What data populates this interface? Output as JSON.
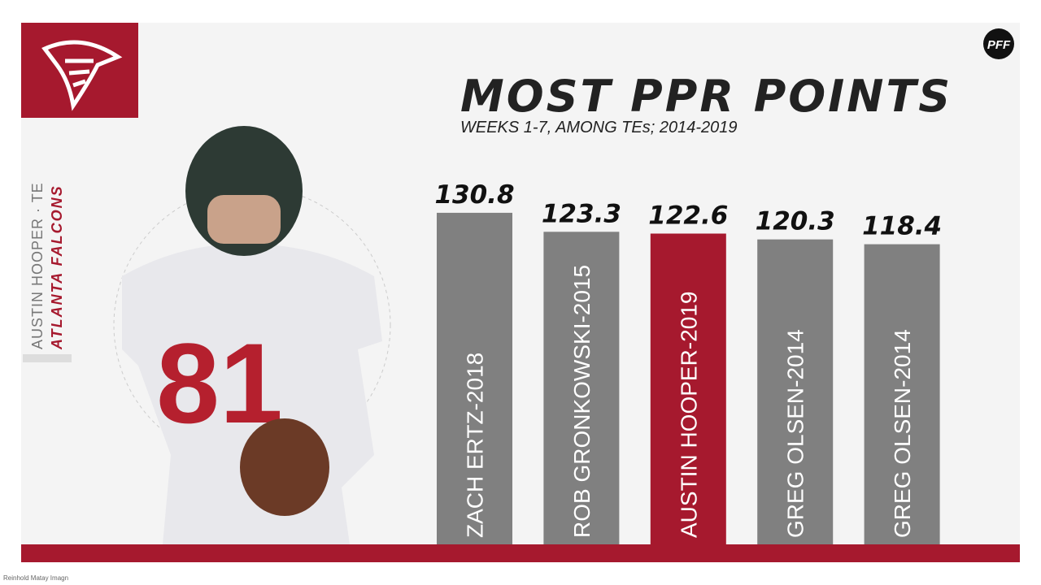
{
  "chart_data": {
    "type": "bar",
    "title": "MOST PPR POINTS",
    "subtitle": "WEEKS 1-7, AMONG TEs; 2014-2019",
    "categories": [
      "ZACH ERTZ-2018",
      "ROB GRONKOWSKI-2015",
      "AUSTIN HOOPER-2019",
      "GREG OLSEN-2014",
      "GREG OLSEN-2014"
    ],
    "values": [
      130.8,
      123.3,
      122.6,
      120.3,
      118.4
    ],
    "colors": [
      "#808080",
      "#808080",
      "#a6192e",
      "#808080",
      "#808080"
    ]
  },
  "player": {
    "name": "AUSTIN HOOPER · TE",
    "team": "ATLANTA FALCONS"
  },
  "brand": "PFF",
  "credit": "Reinhold Matay Imagn"
}
